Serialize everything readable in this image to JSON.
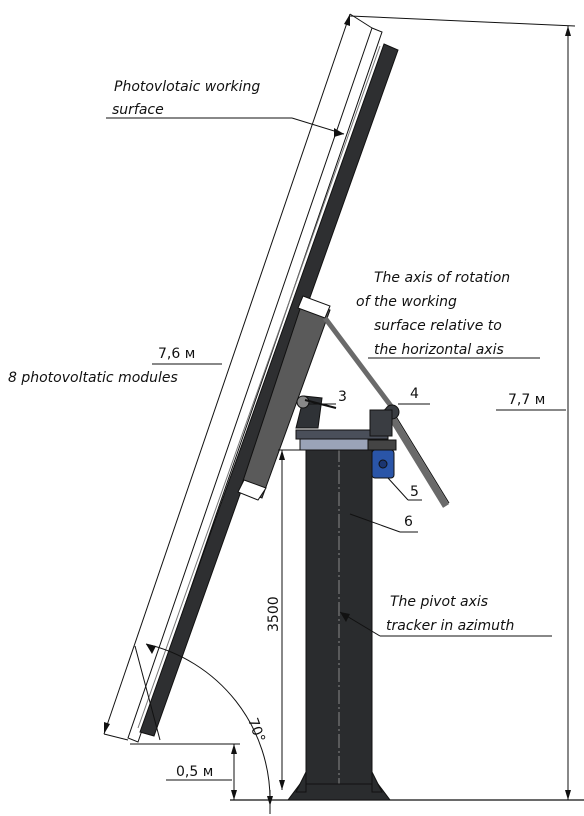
{
  "labels": {
    "surface_line1": "Photovlotaic working",
    "surface_line2": "surface",
    "modules": "8 photovoltatic modules",
    "axis_line1": "The axis of rotation",
    "axis_line2": "of the working",
    "axis_line3": "surface relative to",
    "axis_line4": "the horizontal axis",
    "pivot_line1": "The pivot axis",
    "pivot_line2": "tracker in azimuth"
  },
  "dimensions": {
    "panel_length": "7,6 м",
    "total_height": "7,7 м",
    "column_height": "3500",
    "ground_clearance": "0,5 м",
    "tilt_angle": "70°"
  },
  "callouts": {
    "c3": "3",
    "c4": "4",
    "c5": "5",
    "c6": "6"
  },
  "colors": {
    "steel_dark": "#2a2c2e",
    "panel_frame": "#3a3a3a",
    "motor_blue": "#2a55a8"
  }
}
